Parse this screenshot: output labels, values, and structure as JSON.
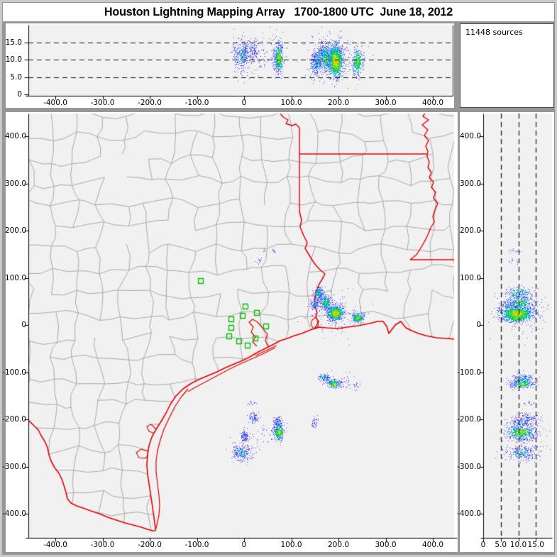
{
  "title": "Houston Lightning Mapping Array   1700-1800 UTC  June 18, 2012",
  "sources_count_label": "11448 sources",
  "colors": {
    "page_bg": "#979797",
    "panel_bg": "#ffffff",
    "plot_bg": "#f1f1f1",
    "county_line": "#a9a9a9",
    "state_border": "#e00000",
    "station": "#00bb00",
    "axis": "#000000",
    "grid_dash": "#111111"
  },
  "axes": {
    "map": {
      "x_tick_values": [
        -400,
        -300,
        -200,
        -100,
        0,
        100,
        200,
        300,
        400
      ],
      "x_tick_labels": [
        "-400.0",
        "-300.0",
        "-200.0",
        "-100.0",
        "0",
        "100.0",
        "200.0",
        "300.0",
        "400.0"
      ],
      "y_tick_values": [
        400,
        300,
        200,
        100,
        0,
        -100,
        -200,
        -300,
        -400
      ],
      "y_tick_labels": [
        "400.0",
        "300.0",
        "200.0",
        "100.0",
        "0",
        "-100.0",
        "-200.0",
        "-300.0",
        "-400.0"
      ]
    },
    "top": {
      "y_tick_values": [
        15,
        10,
        5,
        0
      ],
      "y_tick_labels": [
        "15.0",
        "10.0",
        "5.0",
        "0"
      ],
      "grid_altitudes": [
        5,
        10,
        15
      ]
    },
    "right": {
      "x_tick_values": [
        0,
        5,
        10,
        15
      ],
      "x_tick_labels": [
        "0",
        "5.0",
        "10.0",
        "15.0"
      ],
      "grid_altitudes": [
        5,
        10,
        15
      ]
    }
  },
  "chart_data": {
    "type": "scatter",
    "title": "Houston Lightning Mapping Array 1700-1800 UTC June 18, 2012",
    "total_sources": 11448,
    "panels": {
      "top": {
        "x_range_km": [
          -455,
          445
        ],
        "alt_range_km": [
          0,
          20
        ],
        "grid": "dashed at 5,10,15 km"
      },
      "map": {
        "x_range_km": [
          -455,
          445
        ],
        "y_range_km": [
          -448,
          448
        ],
        "grid": "off"
      },
      "right": {
        "alt_range_km": [
          0,
          19.6
        ],
        "y_range_km": [
          -448,
          448
        ],
        "grid": "dashed at 5,10,15 km"
      }
    },
    "stations_ew_ns_km": [
      [
        -92,
        93
      ],
      [
        3,
        39
      ],
      [
        27,
        26
      ],
      [
        -3,
        20
      ],
      [
        -27,
        12
      ],
      [
        -27,
        -6
      ],
      [
        47,
        -3
      ],
      [
        -32,
        -24
      ],
      [
        -11,
        -35
      ],
      [
        24,
        -29
      ],
      [
        8,
        -44
      ]
    ],
    "clusters": [
      {
        "ew": 193,
        "ns": 26,
        "alt": 9.5,
        "s_ew": 8,
        "s_ns": 7,
        "s_alt": 2.4,
        "n": 900,
        "heat": 1.0
      },
      {
        "ew": 172,
        "ns": 48,
        "alt": 10.5,
        "s_ew": 6,
        "s_ns": 8,
        "s_alt": 2.2,
        "n": 280,
        "heat": 0.75
      },
      {
        "ew": 158,
        "ns": 68,
        "alt": 10.0,
        "s_ew": 5,
        "s_ns": 7,
        "s_alt": 2.0,
        "n": 200,
        "heat": 0.65
      },
      {
        "ew": 150,
        "ns": 45,
        "alt": 8.5,
        "s_ew": 5,
        "s_ns": 6,
        "s_alt": 2.0,
        "n": 130,
        "heat": 0.5
      },
      {
        "ew": 240,
        "ns": 16,
        "alt": 9.5,
        "s_ew": 6,
        "s_ns": 5,
        "s_alt": 2.0,
        "n": 300,
        "heat": 0.85
      },
      {
        "ew": 170,
        "ns": -112,
        "alt": 11.5,
        "s_ew": 6,
        "s_ns": 4,
        "s_alt": 1.5,
        "n": 140,
        "heat": 0.6
      },
      {
        "ew": 190,
        "ns": -124,
        "alt": 11.0,
        "s_ew": 7,
        "s_ns": 4,
        "s_alt": 1.6,
        "n": 260,
        "heat": 0.85
      },
      {
        "ew": 70,
        "ns": -207,
        "alt": 11.0,
        "s_ew": 4,
        "s_ns": 6,
        "s_alt": 2.0,
        "n": 120,
        "heat": 0.5
      },
      {
        "ew": 73,
        "ns": -226,
        "alt": 10.5,
        "s_ew": 5,
        "s_ns": 8,
        "s_alt": 2.2,
        "n": 300,
        "heat": 0.9
      },
      {
        "ew": 20,
        "ns": -196,
        "alt": 12.5,
        "s_ew": 5,
        "s_ns": 5,
        "s_alt": 1.5,
        "n": 90,
        "heat": 0.45
      },
      {
        "ew": 0,
        "ns": -236,
        "alt": 12.0,
        "s_ew": 4,
        "s_ns": 6,
        "s_alt": 1.6,
        "n": 110,
        "heat": 0.5
      },
      {
        "ew": -6,
        "ns": -270,
        "alt": 11.0,
        "s_ew": 9,
        "s_ns": 8,
        "s_alt": 2.5,
        "n": 240,
        "heat": 0.55
      },
      {
        "ew": 150,
        "ns": -206,
        "alt": 10.0,
        "s_ew": 4,
        "s_ns": 6,
        "s_alt": 1.5,
        "n": 45,
        "heat": 0.35
      },
      {
        "ew": 42,
        "ns": 158,
        "alt": 9.0,
        "s_ew": 2,
        "s_ns": 2,
        "s_alt": 1.0,
        "n": 8,
        "heat": 0.45
      },
      {
        "ew": 62,
        "ns": 156,
        "alt": 9.0,
        "s_ew": 2,
        "s_ns": 2,
        "s_alt": 0.8,
        "n": 10,
        "heat": 0.6
      },
      {
        "ew": 32,
        "ns": 135,
        "alt": 8.5,
        "s_ew": 3,
        "s_ns": 3,
        "s_alt": 1.2,
        "n": 12,
        "heat": 0.35
      },
      {
        "ew": 238,
        "ns": -128,
        "alt": 9.0,
        "s_ew": 4,
        "s_ns": 4,
        "s_alt": 1.5,
        "n": 18,
        "heat": 0.3
      },
      {
        "ew": 15,
        "ns": -165,
        "alt": 13.0,
        "s_ew": 4,
        "s_ns": 3,
        "s_alt": 1.2,
        "n": 15,
        "heat": 0.25
      },
      {
        "ew": 185,
        "ns": 30,
        "alt": 11.0,
        "s_ew": 28,
        "s_ns": 24,
        "s_alt": 3.5,
        "n": 130,
        "heat": 0.15
      },
      {
        "ew": 62,
        "ns": -222,
        "alt": 11.5,
        "s_ew": 16,
        "s_ns": 14,
        "s_alt": 3.0,
        "n": 60,
        "heat": 0.15
      },
      {
        "ew": 2,
        "ns": -258,
        "alt": 12.0,
        "s_ew": 18,
        "s_ns": 14,
        "s_alt": 3.0,
        "n": 55,
        "heat": 0.15
      },
      {
        "ew": 205,
        "ns": -120,
        "alt": 11.0,
        "s_ew": 14,
        "s_ns": 8,
        "s_alt": 2.5,
        "n": 45,
        "heat": 0.2
      }
    ]
  }
}
